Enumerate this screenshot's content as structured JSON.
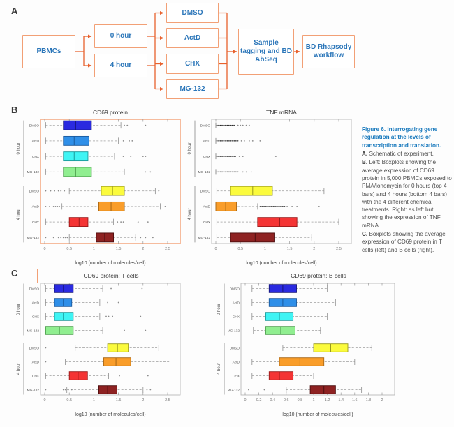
{
  "colors": {
    "accent_border": "#f2a076",
    "arrow": "#e8612d",
    "node_text": "#2b76b9",
    "caption_title_blue": "#1879bd"
  },
  "panel_labels": {
    "a": "A",
    "b": "B",
    "c": "C"
  },
  "flowchart": {
    "nodes": [
      {
        "id": "pbmcs",
        "label": "PBMCs"
      },
      {
        "id": "hour0",
        "label": "0 hour"
      },
      {
        "id": "hour4",
        "label": "4 hour"
      },
      {
        "id": "dmso",
        "label": "DMSO"
      },
      {
        "id": "actd",
        "label": "ActD"
      },
      {
        "id": "chx",
        "label": "CHX"
      },
      {
        "id": "mg132",
        "label": "MG-132"
      },
      {
        "id": "tagging",
        "label": "Sample tagging and BD AbSeq"
      },
      {
        "id": "rhapsody",
        "label": "BD Rhapsody workflow"
      }
    ]
  },
  "caption": {
    "title": "Figure 6. Interrogating gene regulation at the levels of transcription and translation.",
    "items": [
      {
        "prefix": "A.",
        "text": " Schematic of experiment."
      },
      {
        "prefix": "B.",
        "text": " Left: Boxplots showing the average expression of CD69 protein in 5,000 PBMCs exposed to PMA/ionomycin for 0 hours (top 4 bars) and 4 hours (bottom 4 bars) with the 4 different chemical treatments. Right: as left but showing the expression of TNF mRNA."
      },
      {
        "prefix": "C.",
        "text": " Boxplots showing the average expression of CD69 protein in T cells (left) and B cells (right)."
      }
    ]
  },
  "chart_data": [
    {
      "id": "cd69-protein-pbmc",
      "type": "boxplot-horizontal",
      "title": "CD69 protein",
      "xlabel": "log10 (number of molecules/cell)",
      "xlim": [
        0,
        2.5
      ],
      "xticks": [
        0,
        0.5,
        1,
        1.5,
        2,
        2.5
      ],
      "highlight_border": true,
      "groups": [
        {
          "label": "0 hour",
          "rows": [
            {
              "label": "DMSO",
              "fill": "#2a2ae0",
              "edge": "#15157a",
              "box": [
                0.38,
                0.63,
                0.95
              ],
              "whiskers": [
                0.02,
                1.55
              ],
              "outliers": [
                1.62,
                1.68,
                2.05
              ]
            },
            {
              "label": "ActD",
              "fill": "#2f8fe8",
              "edge": "#1a5a9e",
              "box": [
                0.38,
                0.6,
                0.9
              ],
              "whiskers": [
                0.02,
                1.5
              ],
              "outliers": [
                1.6,
                1.72,
                1.78
              ]
            },
            {
              "label": "CHX",
              "fill": "#3ff4f4",
              "edge": "#1a9a9a",
              "box": [
                0.38,
                0.6,
                0.88
              ],
              "whiskers": [
                0.02,
                1.42
              ],
              "outliers": [
                1.6,
                1.75,
                2.0,
                2.05
              ]
            },
            {
              "label": "MG-132",
              "fill": "#90ee90",
              "edge": "#4d9e4d",
              "box": [
                0.38,
                0.63,
                0.95
              ],
              "whiskers": [
                0.02,
                1.62
              ],
              "outliers": [
                2.05,
                2.15
              ]
            }
          ]
        },
        {
          "label": "4 hour",
          "rows": [
            {
              "label": "DMSO",
              "fill": "#fbfb3d",
              "edge": "#9a9a1e",
              "box": [
                1.15,
                1.38,
                1.62
              ],
              "whiskers": [
                0.5,
                2.25
              ],
              "outliers": [
                0.02,
                0.12,
                0.2,
                0.28,
                0.33,
                0.4,
                2.32
              ]
            },
            {
              "label": "ActD",
              "fill": "#f99d2a",
              "edge": "#a86614",
              "box": [
                1.1,
                1.35,
                1.62
              ],
              "whiskers": [
                0.35,
                2.35
              ],
              "outliers": [
                0.02,
                0.1,
                0.18,
                0.22,
                0.26,
                0.3,
                2.45
              ]
            },
            {
              "label": "CHX",
              "fill": "#f43434",
              "edge": "#9a1a1a",
              "box": [
                0.5,
                0.7,
                0.88
              ],
              "whiskers": [
                0.02,
                1.4
              ],
              "outliers": [
                1.48,
                1.55,
                1.6,
                1.9,
                2.1
              ]
            },
            {
              "label": "MG-132",
              "fill": "#8e2222",
              "edge": "#4d0f0f",
              "box": [
                1.05,
                1.22,
                1.4
              ],
              "whiskers": [
                0.5,
                1.85
              ],
              "outliers": [
                0.02,
                0.18,
                0.28,
                0.33,
                0.38,
                0.42,
                0.46,
                1.95,
                2.05,
                2.2
              ]
            }
          ]
        }
      ]
    },
    {
      "id": "tnf-mrna-pbmc",
      "type": "boxplot-horizontal",
      "title": "TNF mRNA",
      "xlabel": "log10 (number of molecules/cell)",
      "xlim": [
        0,
        2.5
      ],
      "xticks": [
        0,
        0.5,
        1,
        1.5,
        2,
        2.5
      ],
      "highlight_border": false,
      "groups": [
        {
          "label": "0 hour",
          "rows": [
            {
              "label": "DMSO",
              "strip": [
                0.02,
                0.38
              ],
              "outliers": [
                0.45,
                0.5,
                0.55,
                0.62,
                0.68
              ]
            },
            {
              "label": "ActD",
              "strip": [
                0.02,
                0.45
              ],
              "outliers": [
                0.52,
                0.58,
                0.68,
                0.75,
                0.9
              ]
            },
            {
              "label": "CHX",
              "strip": [
                0.02,
                0.4
              ],
              "outliers": [
                0.48,
                0.55,
                1.22
              ]
            },
            {
              "label": "MG-132",
              "strip": [
                0.02,
                0.45
              ],
              "outliers": [
                0.55,
                0.62,
                0.72
              ]
            }
          ]
        },
        {
          "label": "4 hour",
          "rows": [
            {
              "label": "DMSO",
              "fill": "#fbfb3d",
              "edge": "#9a9a1e",
              "box": [
                0.3,
                0.75,
                1.15
              ],
              "whiskers": [
                0.02,
                2.2
              ],
              "outliers": []
            },
            {
              "label": "ActD",
              "fill": "#f99d2a",
              "edge": "#a86614",
              "box": [
                0.0,
                0.2,
                0.42
              ],
              "whiskers": [
                0.0,
                0.85
              ],
              "strip": [
                0.9,
                1.4
              ],
              "outliers": [
                1.45,
                1.55,
                1.65,
                2.1
              ]
            },
            {
              "label": "CHX",
              "fill": "#f43434",
              "edge": "#9a1a1a",
              "box": [
                0.85,
                1.3,
                1.65
              ],
              "whiskers": [
                0.02,
                2.5
              ],
              "outliers": []
            },
            {
              "label": "MG-132",
              "fill": "#8e2222",
              "edge": "#4d0f0f",
              "box": [
                0.3,
                0.8,
                1.2
              ],
              "whiskers": [
                0.02,
                1.95
              ],
              "outliers": []
            }
          ]
        }
      ]
    },
    {
      "id": "cd69-protein-tcells",
      "type": "boxplot-horizontal",
      "title": "CD69 protein: T cells",
      "xlabel": "log10 (number of molecules/cell)",
      "xlim": [
        0,
        2.5
      ],
      "xticks": [
        0,
        0.5,
        1,
        1.5,
        2,
        2.5
      ],
      "highlight_border": false,
      "groups": [
        {
          "label": "0 hour",
          "rows": [
            {
              "label": "DMSO",
              "fill": "#2a2ae0",
              "edge": "#15157a",
              "box": [
                0.2,
                0.38,
                0.58
              ],
              "whiskers": [
                0.02,
                1.18
              ],
              "outliers": [
                1.35,
                1.98
              ]
            },
            {
              "label": "ActD",
              "fill": "#2f8fe8",
              "edge": "#1a5a9e",
              "box": [
                0.2,
                0.38,
                0.55
              ],
              "whiskers": [
                0.02,
                1.12
              ],
              "outliers": [
                1.28,
                1.5
              ]
            },
            {
              "label": "CHX",
              "fill": "#3ff4f4",
              "edge": "#1a9a9a",
              "box": [
                0.2,
                0.38,
                0.58
              ],
              "whiskers": [
                0.02,
                1.12
              ],
              "outliers": [
                1.25,
                1.3,
                1.38,
                1.95
              ]
            },
            {
              "label": "MG-132",
              "fill": "#90ee90",
              "edge": "#4d9e4d",
              "box": [
                0.02,
                0.3,
                0.58
              ],
              "whiskers": [
                0.02,
                1.18
              ],
              "outliers": [
                1.62,
                2.05
              ]
            }
          ]
        },
        {
          "label": "4 hour",
          "rows": [
            {
              "label": "DMSO",
              "fill": "#fbfb3d",
              "edge": "#9a9a1e",
              "box": [
                1.28,
                1.48,
                1.7
              ],
              "whiskers": [
                0.62,
                2.32
              ],
              "outliers": [
                0.02
              ]
            },
            {
              "label": "ActD",
              "fill": "#f99d2a",
              "edge": "#a86614",
              "box": [
                1.2,
                1.45,
                1.75
              ],
              "whiskers": [
                0.42,
                2.55
              ],
              "outliers": [
                0.02
              ]
            },
            {
              "label": "CHX",
              "fill": "#f43434",
              "edge": "#9a1a1a",
              "box": [
                0.5,
                0.68,
                0.87
              ],
              "whiskers": [
                0.02,
                1.3
              ],
              "outliers": [
                1.52,
                2.1
              ]
            },
            {
              "label": "MG-132",
              "fill": "#8e2222",
              "edge": "#4d0f0f",
              "box": [
                1.1,
                1.28,
                1.47
              ],
              "whiskers": [
                0.45,
                2.0
              ],
              "outliers": [
                0.02,
                0.38,
                0.42,
                0.48,
                0.55,
                2.08,
                2.15
              ]
            }
          ]
        }
      ]
    },
    {
      "id": "cd69-protein-bcells",
      "type": "boxplot-horizontal",
      "title": "CD69 protein: B cells",
      "xlabel": "log10 (number of molecules/cell)",
      "xlim": [
        0,
        2
      ],
      "xticks": [
        0,
        0.2,
        0.4,
        0.6,
        0.8,
        1,
        1.2,
        1.4,
        1.6,
        1.8,
        2
      ],
      "highlight_border": false,
      "groups": [
        {
          "label": "0 hour",
          "rows": [
            {
              "label": "DMSO",
              "fill": "#2a2ae0",
              "edge": "#15157a",
              "box": [
                0.35,
                0.55,
                0.75
              ],
              "whiskers": [
                0.1,
                1.2
              ],
              "outliers": []
            },
            {
              "label": "ActD",
              "fill": "#2f8fe8",
              "edge": "#1a5a9e",
              "box": [
                0.35,
                0.55,
                0.75
              ],
              "whiskers": [
                0.1,
                1.32
              ],
              "outliers": []
            },
            {
              "label": "CHX",
              "fill": "#3ff4f4",
              "edge": "#1a9a9a",
              "box": [
                0.3,
                0.5,
                0.7
              ],
              "whiskers": [
                0.1,
                1.2
              ],
              "outliers": []
            },
            {
              "label": "MG-132",
              "fill": "#90ee90",
              "edge": "#4d9e4d",
              "box": [
                0.3,
                0.52,
                0.73
              ],
              "whiskers": [
                0.12,
                1.1
              ],
              "outliers": []
            }
          ]
        },
        {
          "label": "4 hour",
          "rows": [
            {
              "label": "DMSO",
              "fill": "#fbfb3d",
              "edge": "#9a9a1e",
              "box": [
                1.0,
                1.25,
                1.5
              ],
              "whiskers": [
                0.55,
                1.85
              ],
              "outliers": []
            },
            {
              "label": "ActD",
              "fill": "#f99d2a",
              "edge": "#a86614",
              "box": [
                0.5,
                0.8,
                1.15
              ],
              "whiskers": [
                0.1,
                1.6
              ],
              "outliers": []
            },
            {
              "label": "CHX",
              "fill": "#f43434",
              "edge": "#9a1a1a",
              "box": [
                0.35,
                0.5,
                0.7
              ],
              "whiskers": [
                0.1,
                1.0
              ],
              "outliers": []
            },
            {
              "label": "MG-132",
              "fill": "#8e2222",
              "edge": "#4d0f0f",
              "box": [
                0.95,
                1.15,
                1.32
              ],
              "whiskers": [
                0.6,
                1.7
              ],
              "outliers": [
                0.05,
                0.28
              ]
            }
          ]
        }
      ]
    }
  ]
}
